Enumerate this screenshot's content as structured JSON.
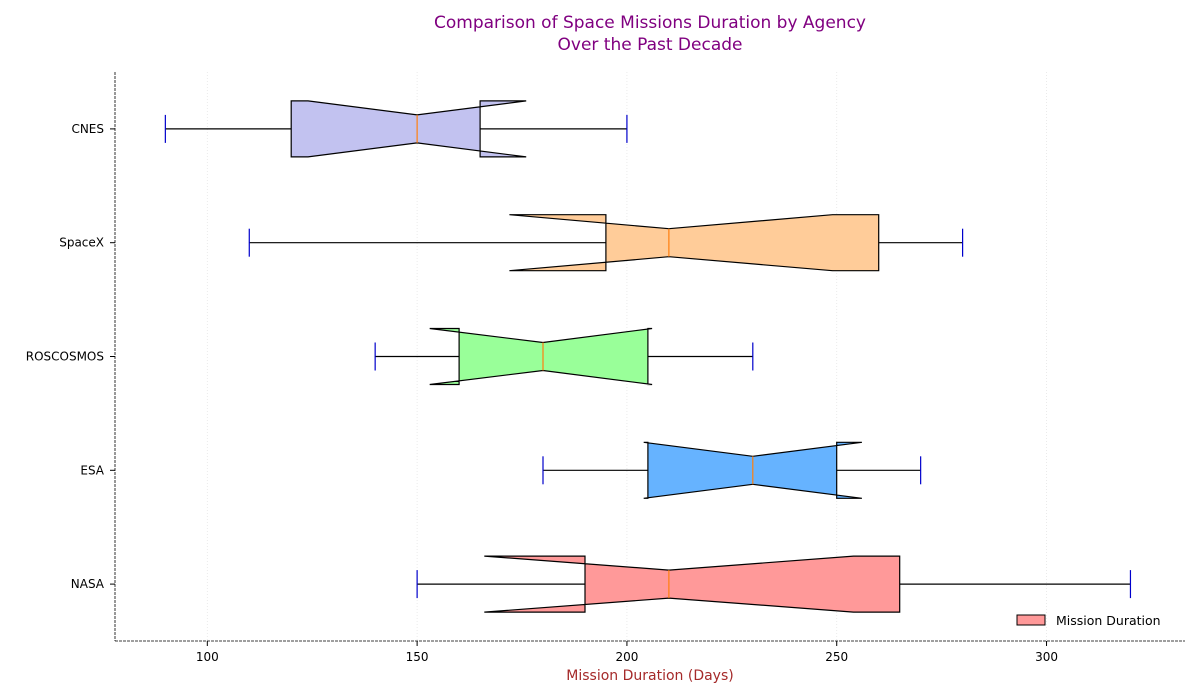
{
  "chart_data": {
    "type": "boxplot",
    "orientation": "horizontal",
    "notched": true,
    "title": "Comparison of Space Missions Duration by Agency\nOver the Past Decade",
    "xlabel": "Mission Duration (Days)",
    "ylabel": "",
    "xlim": [
      78,
      333
    ],
    "xticks": [
      100,
      150,
      200,
      250,
      300
    ],
    "grid": "vertical dotted",
    "legend": {
      "label": "Mission Duration",
      "placement": "lower-right"
    },
    "colors": {
      "title": "#800080",
      "xlabel": "#a52a2a",
      "whisker_cap": "#0000cc",
      "median": "#ff7f0e",
      "box_edge": "#000000"
    },
    "series": [
      {
        "name": "NASA",
        "min": 150,
        "q1": 190,
        "median": 210,
        "q3": 265,
        "max": 320,
        "notch": [
          166,
          254
        ],
        "color": "#ff9999"
      },
      {
        "name": "ESA",
        "min": 180,
        "q1": 205,
        "median": 230,
        "q3": 250,
        "max": 270,
        "notch": [
          204,
          256
        ],
        "color": "#66b3ff"
      },
      {
        "name": "ROSCOSMOS",
        "min": 140,
        "q1": 160,
        "median": 180,
        "q3": 205,
        "max": 230,
        "notch": [
          153,
          206
        ],
        "color": "#99ff99"
      },
      {
        "name": "SpaceX",
        "min": 110,
        "q1": 195,
        "median": 210,
        "q3": 260,
        "max": 280,
        "notch": [
          172,
          249
        ],
        "color": "#ffcc99"
      },
      {
        "name": "CNES",
        "min": 90,
        "q1": 120,
        "median": 150,
        "q3": 165,
        "max": 200,
        "notch": [
          124,
          176
        ],
        "color": "#c2c2f0"
      }
    ]
  }
}
